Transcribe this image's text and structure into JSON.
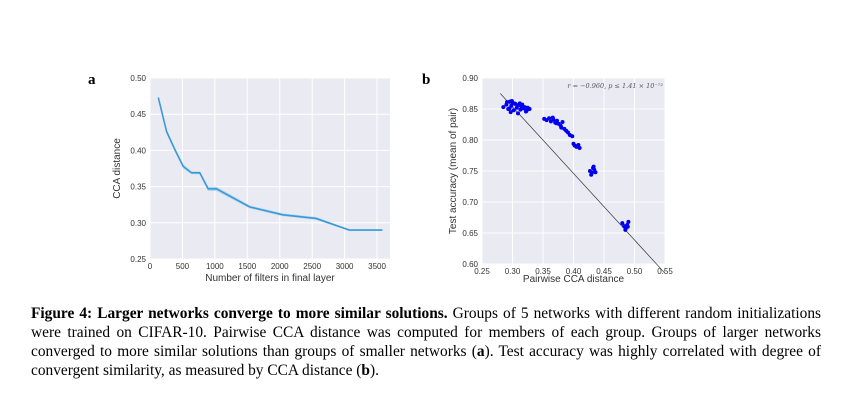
{
  "panels": {
    "a": "a",
    "b": "b"
  },
  "chart_data": [
    {
      "type": "line",
      "panel": "a",
      "xlabel": "Number of filters in final layer",
      "ylabel": "CCA distance",
      "xlim": [
        0,
        3700
      ],
      "ylim": [
        0.25,
        0.5
      ],
      "xticks": [
        0,
        500,
        1000,
        1500,
        2000,
        2500,
        3000,
        3500
      ],
      "xtick_labels": [
        "0",
        "500",
        "1000",
        "1500",
        "2000",
        "2500",
        "3000",
        "3500"
      ],
      "yticks": [
        0.25,
        0.3,
        0.35,
        0.4,
        0.45,
        0.5
      ],
      "ytick_labels": [
        "0.25",
        "0.30",
        "0.35",
        "0.40",
        "0.45",
        "0.50"
      ],
      "grid": true,
      "line_color": "#3a9ad9",
      "band_color": "#a9d3ee",
      "x": [
        128,
        256,
        384,
        512,
        640,
        768,
        896,
        1024,
        1536,
        2048,
        2560,
        3072,
        3584
      ],
      "y": [
        0.473,
        0.426,
        0.401,
        0.378,
        0.369,
        0.369,
        0.347,
        0.347,
        0.322,
        0.311,
        0.306,
        0.29,
        0.29
      ],
      "band_halfwidth": [
        0.002,
        0.003,
        0.003,
        0.003,
        0.002,
        0.002,
        0.003,
        0.003,
        0.002,
        0.002,
        0.002,
        0.001,
        0.001
      ]
    },
    {
      "type": "scatter",
      "panel": "b",
      "xlabel": "Pairwise CCA distance",
      "ylabel": "Test accuracy (mean of pair)",
      "xlim": [
        0.25,
        0.55
      ],
      "ylim": [
        0.6,
        0.9
      ],
      "xticks": [
        0.25,
        0.3,
        0.35,
        0.4,
        0.45,
        0.5,
        0.55
      ],
      "xtick_labels": [
        "0.25",
        "0.30",
        "0.35",
        "0.40",
        "0.45",
        "0.50",
        "0.55"
      ],
      "yticks": [
        0.6,
        0.65,
        0.7,
        0.75,
        0.8,
        0.85,
        0.9
      ],
      "ytick_labels": [
        "0.60",
        "0.65",
        "0.70",
        "0.75",
        "0.80",
        "0.85",
        "0.90"
      ],
      "grid": true,
      "point_color": "#0000ee",
      "annotation": "r = −0.960, p ≤ 1.41 × 10⁻⁷²",
      "fit_line": {
        "x": [
          0.28,
          0.55
        ],
        "y": [
          0.875,
          0.585
        ]
      },
      "x": [
        0.285,
        0.29,
        0.293,
        0.296,
        0.298,
        0.3,
        0.302,
        0.305,
        0.307,
        0.31,
        0.313,
        0.315,
        0.318,
        0.32,
        0.323,
        0.325,
        0.328,
        0.291,
        0.297,
        0.303,
        0.309,
        0.316,
        0.322,
        0.299,
        0.312,
        0.295,
        0.352,
        0.356,
        0.36,
        0.363,
        0.367,
        0.37,
        0.373,
        0.376,
        0.379,
        0.382,
        0.385,
        0.388,
        0.391,
        0.366,
        0.372,
        0.38,
        0.394,
        0.398,
        0.4,
        0.402,
        0.405,
        0.408,
        0.41,
        0.427,
        0.43,
        0.432,
        0.434,
        0.436,
        0.429,
        0.433,
        0.48,
        0.483,
        0.486,
        0.488,
        0.49,
        0.485,
        0.489
      ],
      "y": [
        0.853,
        0.857,
        0.85,
        0.862,
        0.855,
        0.86,
        0.848,
        0.858,
        0.852,
        0.856,
        0.849,
        0.854,
        0.851,
        0.853,
        0.847,
        0.852,
        0.85,
        0.861,
        0.845,
        0.859,
        0.843,
        0.857,
        0.846,
        0.863,
        0.859,
        0.851,
        0.834,
        0.832,
        0.835,
        0.83,
        0.833,
        0.828,
        0.831,
        0.826,
        0.823,
        0.829,
        0.818,
        0.815,
        0.812,
        0.836,
        0.827,
        0.82,
        0.808,
        0.806,
        0.794,
        0.791,
        0.789,
        0.792,
        0.787,
        0.75,
        0.747,
        0.755,
        0.752,
        0.748,
        0.744,
        0.757,
        0.666,
        0.661,
        0.658,
        0.663,
        0.668,
        0.655,
        0.66
      ]
    }
  ],
  "caption": {
    "label": "Figure 4:",
    "bold_title": "Larger networks converge to more similar solutions.",
    "text_1": " Groups of 5 networks with different random initializations were trained on CIFAR-10. Pairwise CCA distance was computed for members of each group. Groups of larger networks converged to more similar solutions than groups of smaller networks (",
    "ref_a": "a",
    "text_2": "). Test accuracy was highly correlated with degree of convergent similarity, as measured by CCA distance (",
    "ref_b": "b",
    "text_3": ")."
  }
}
